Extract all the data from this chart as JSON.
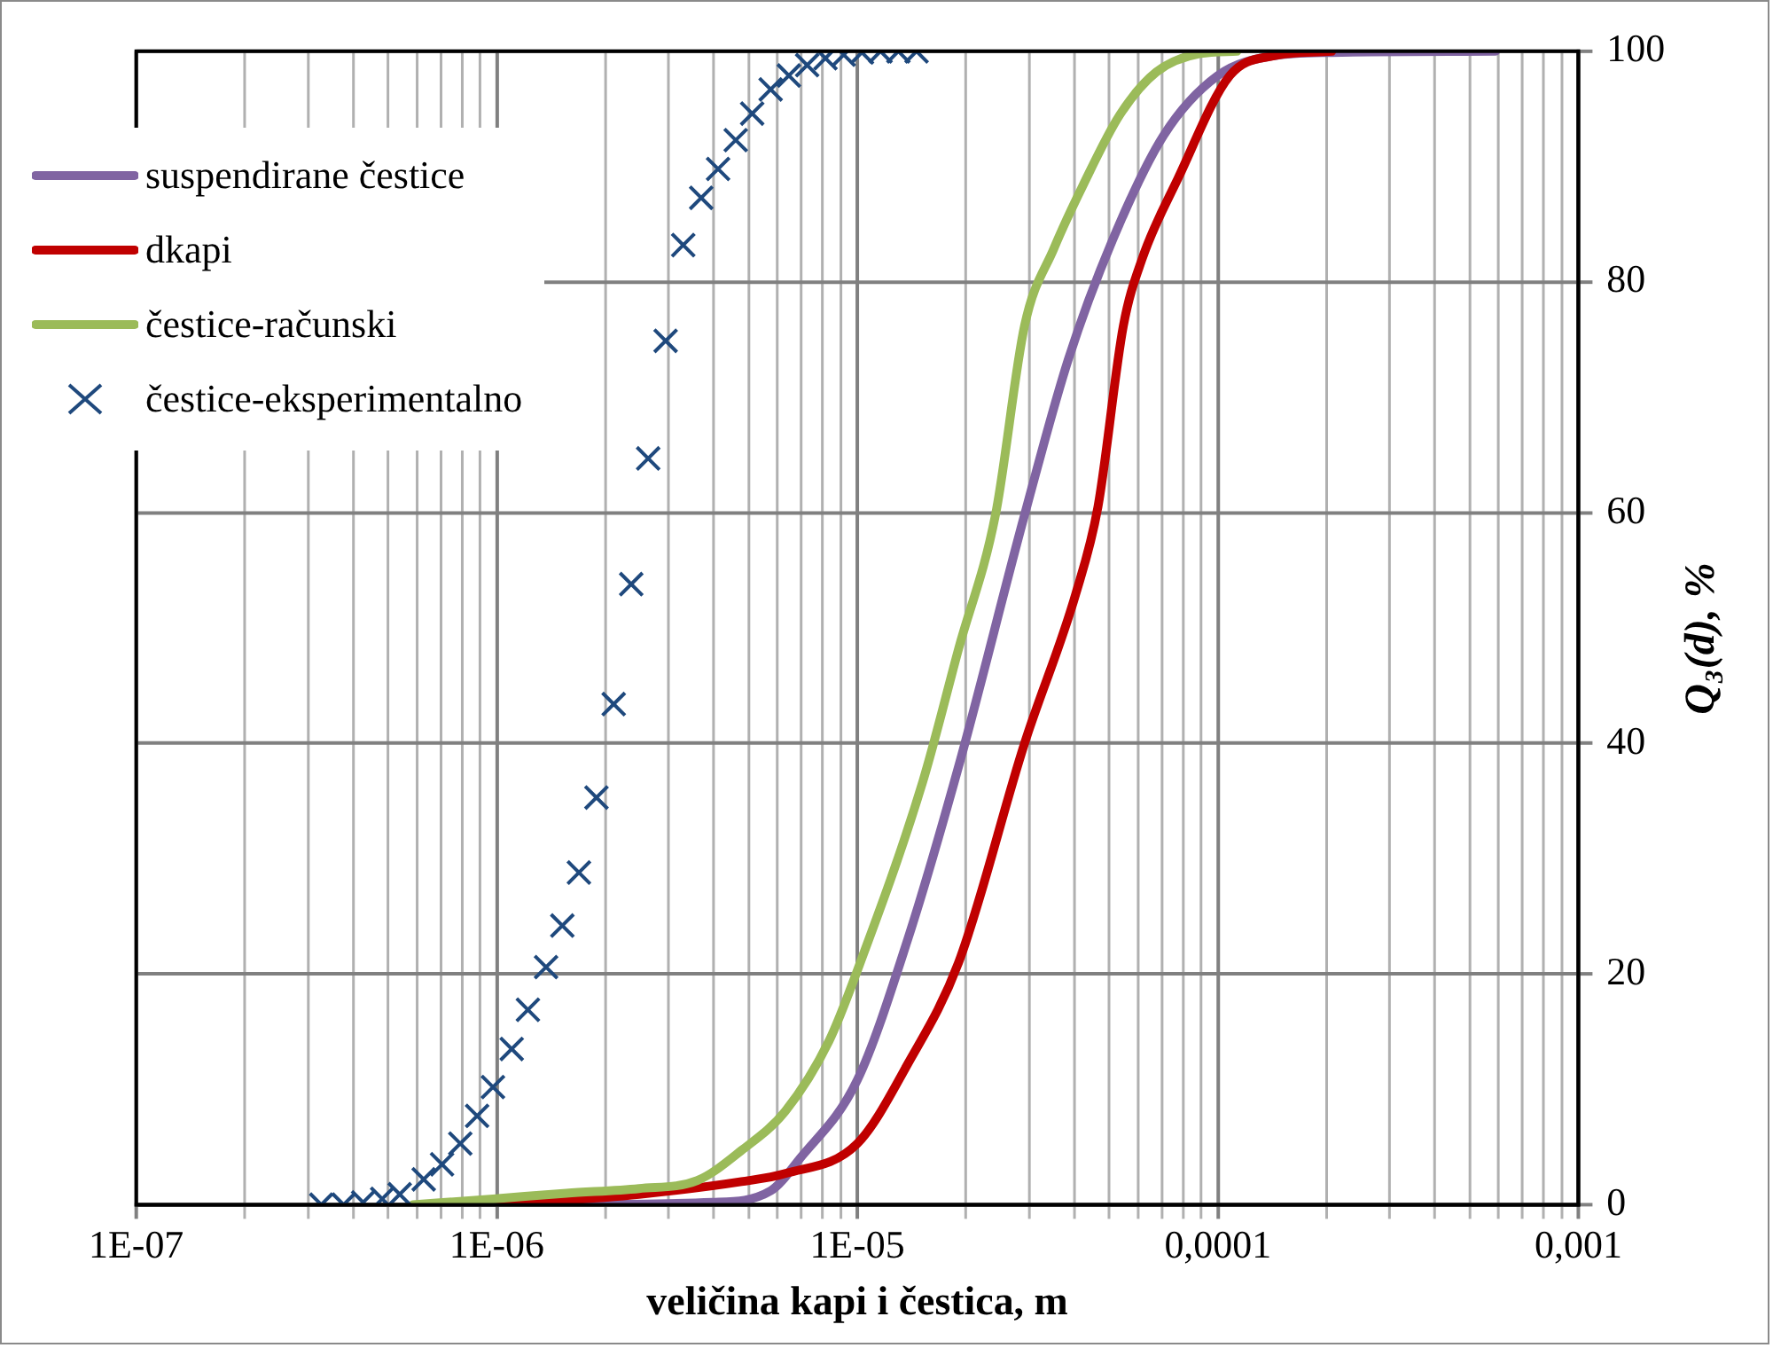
{
  "chart_data": {
    "type": "line",
    "xlabel": "veličina kapi i čestica, m",
    "ylabel": "Q₃(d), %",
    "log": "x",
    "grid": true,
    "legend": "top left",
    "xlim": [
      1e-07,
      0.001
    ],
    "xticks": [
      {
        "value": 1e-07,
        "label": "1E-07"
      },
      {
        "value": 1e-06,
        "label": "1E-06"
      },
      {
        "value": 1e-05,
        "label": "1E-05"
      },
      {
        "value": 0.0001,
        "label": "0,0001"
      },
      {
        "value": 0.001,
        "label": "0,001"
      }
    ],
    "ylim": [
      0,
      100
    ],
    "yticks": [
      0,
      20,
      40,
      60,
      80,
      100
    ],
    "series": [
      {
        "name": "suspendirane čestice",
        "type": "line",
        "color": "#8064a2",
        "marker": "none",
        "x": [
          1.42e-06,
          3.96e-06,
          5.75e-06,
          6.93e-06,
          1e-05,
          1.38e-05,
          1.91e-05,
          2.91e-05,
          3.85e-05,
          5.1e-05,
          7.07e-05,
          0.0001,
          0.000142,
          0.000207,
          0.00059
        ],
        "values": [
          0,
          0.2,
          1.2,
          4,
          10.8,
          23,
          38,
          59.8,
          73.3,
          83.6,
          92.7,
          97.9,
          99.6,
          99.9,
          100
        ]
      },
      {
        "name": "dkapi",
        "type": "line",
        "color": "#c00000",
        "marker": "none",
        "x": [
          1.02e-06,
          2.48e-06,
          4.77e-06,
          6.31e-06,
          1e-05,
          1.38e-05,
          1.91e-05,
          2.91e-05,
          4.04e-05,
          4.65e-05,
          5.47e-05,
          6.15e-05,
          7.76e-05,
          0.000108,
          0.000142,
          0.000207
        ],
        "values": [
          0,
          0.9,
          2,
          2.7,
          5.3,
          12.2,
          21,
          40,
          53,
          60.5,
          76.2,
          81.9,
          89,
          97.9,
          99.6,
          100
        ]
      },
      {
        "name": "čestice-računski",
        "type": "line",
        "color": "#9bbb59",
        "marker": "none",
        "x": [
          5.85e-07,
          9.76e-07,
          1.56e-06,
          2.48e-06,
          3.6e-06,
          4.77e-06,
          6.31e-06,
          8.35e-06,
          1e-05,
          1.52e-05,
          1.91e-05,
          2.42e-05,
          2.91e-05,
          3.51e-05,
          4.23e-05,
          5.35e-05,
          6.75e-05,
          8.93e-05,
          0.000113
        ],
        "values": [
          0,
          0.5,
          1,
          1.4,
          2.1,
          4.7,
          8.1,
          14.2,
          20.3,
          36.7,
          48.2,
          59.9,
          76.2,
          82.9,
          88.4,
          94.5,
          98.2,
          99.8,
          100
        ]
      },
      {
        "name": "čestice-eksperimentalno",
        "type": "scatter",
        "color": "#1f497d",
        "marker": "cross",
        "x": [
          3.26e-07,
          3.76e-07,
          4.26e-07,
          4.81e-07,
          5.38e-07,
          6.27e-07,
          7.05e-07,
          7.92e-07,
          8.82e-07,
          9.76e-07,
          1.1e-06,
          1.22e-06,
          1.37e-06,
          1.52e-06,
          1.69e-06,
          1.89e-06,
          2.11e-06,
          2.36e-06,
          2.63e-06,
          2.94e-06,
          3.29e-06,
          3.69e-06,
          4.11e-06,
          4.6e-06,
          5.11e-06,
          5.75e-06,
          6.46e-06,
          7.26e-06,
          8.16e-06,
          9.17e-06,
          1.03e-05,
          1.16e-05,
          1.3e-05,
          1.46e-05
        ],
        "values": [
          0,
          0,
          0.2,
          0.5,
          0.9,
          2.2,
          3.5,
          5.3,
          7.7,
          10.2,
          13.5,
          16.9,
          20.6,
          24.2,
          28.8,
          35.3,
          43.4,
          53.8,
          64.7,
          74.9,
          83.2,
          87.3,
          89.8,
          92.3,
          94.6,
          96.7,
          97.9,
          98.8,
          99.4,
          99.7,
          99.9,
          100,
          100,
          100
        ]
      }
    ]
  }
}
